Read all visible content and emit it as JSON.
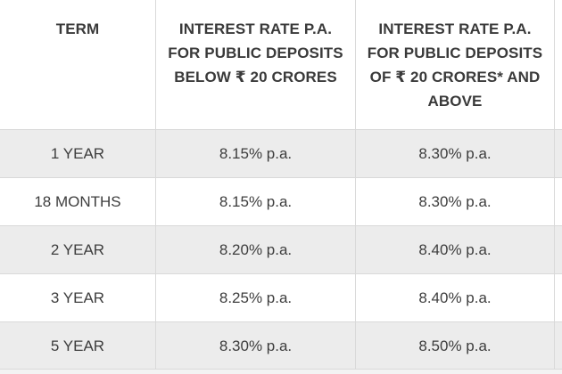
{
  "table": {
    "headers": [
      "TERM",
      "INTEREST RATE P.A. FOR PUBLIC DEPOSITS BELOW ₹ 20 CRORES",
      "INTEREST RATE P.A. FOR PUBLIC DEPOSITS OF ₹ 20 CRORES* AND ABOVE"
    ],
    "rows": [
      {
        "term": "1 YEAR",
        "below": "8.15% p.a.",
        "above": "8.30% p.a."
      },
      {
        "term": "18 MONTHS",
        "below": "8.15% p.a.",
        "above": "8.30% p.a."
      },
      {
        "term": "2 YEAR",
        "below": "8.20% p.a.",
        "above": "8.40% p.a."
      },
      {
        "term": "3 YEAR",
        "below": "8.25% p.a.",
        "above": "8.40% p.a."
      },
      {
        "term": "5 YEAR",
        "below": "8.30% p.a.",
        "above": "8.50% p.a."
      }
    ],
    "colors": {
      "border": "#d9d9d9",
      "stripe": "#ececec",
      "background": "#ffffff",
      "text": "#333333"
    }
  }
}
